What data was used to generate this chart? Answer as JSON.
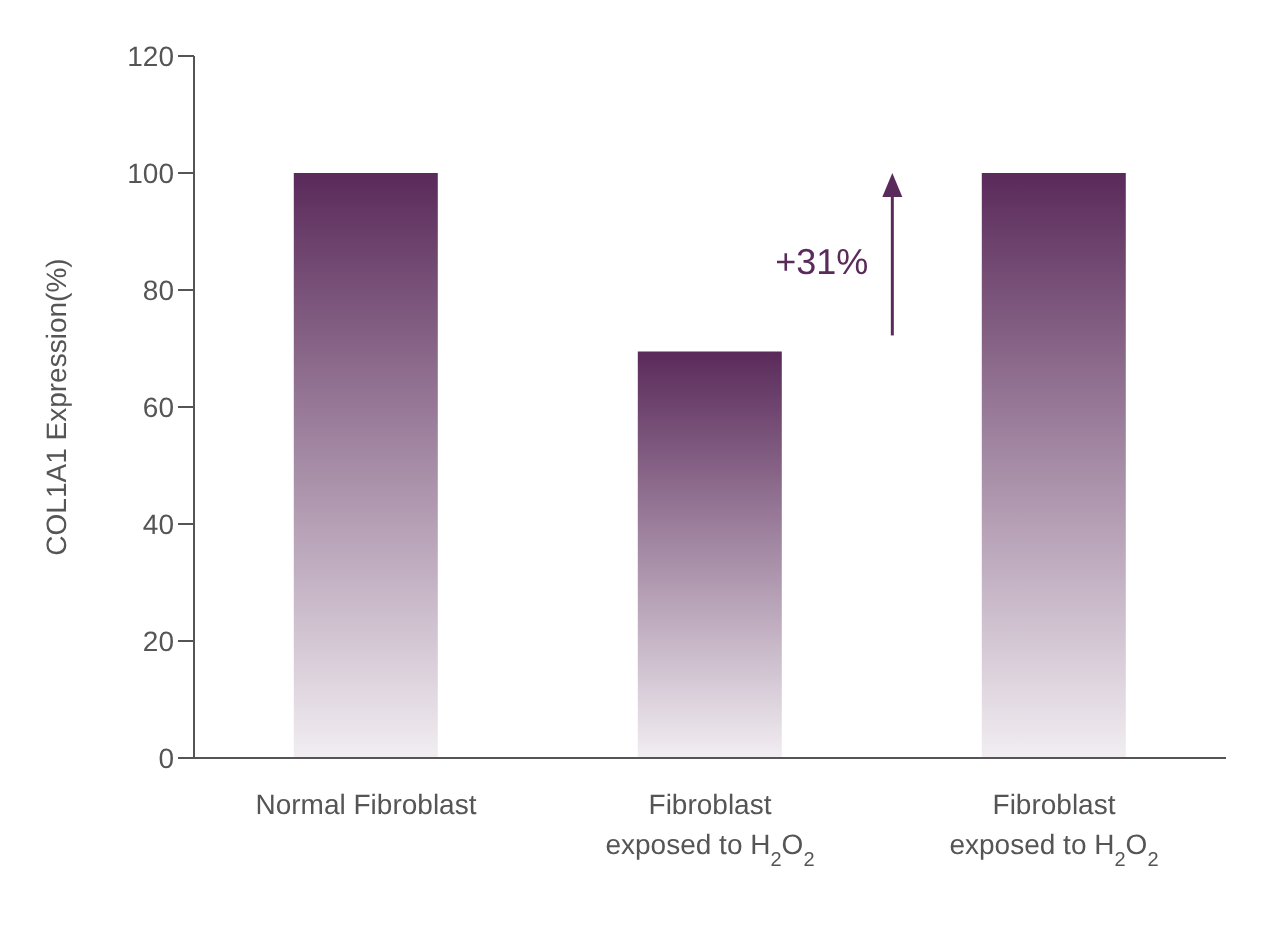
{
  "chart_data": {
    "type": "bar",
    "ylabel": "COL1A1 Expression(%)",
    "categories": [
      "Normal Fibroblast",
      "Fibroblast exposed to H$_{2}$O$_{2}$",
      "Fibroblast exposed to H$_{2}$O$_{2}$"
    ],
    "values": [
      100,
      69.5,
      100
    ],
    "color": "#5a2a5a",
    "ylim": [
      0,
      120
    ],
    "yticks": [
      0,
      20,
      40,
      60,
      80,
      100,
      120
    ],
    "annotations": [
      "+31%"
    ]
  }
}
